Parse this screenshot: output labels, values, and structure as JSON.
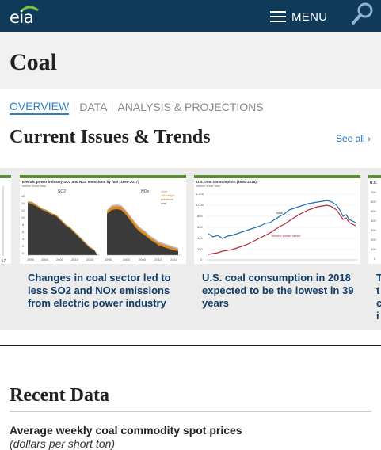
{
  "header": {
    "logo_text": "eia",
    "menu_label": "MENU",
    "search_icon": "magnifier-icon",
    "background_color": "#0f3a5a"
  },
  "page": {
    "title": "Coal"
  },
  "subnav": {
    "tabs": [
      {
        "label": "OVERVIEW",
        "active": true
      },
      {
        "label": "DATA",
        "active": false
      },
      {
        "label": "ANALYSIS & PROJECTIONS",
        "active": false
      }
    ]
  },
  "trends": {
    "title": "Current Issues & Trends",
    "see_all_label": "See all ›",
    "cards": [
      {
        "chart_title": "Electric power industry SO2 and NOx emissions by fuel (1995-2017)",
        "chart_units": "million short tons",
        "panel_left": "SO2",
        "panel_right": "NOx",
        "legend": [
          "other",
          "natural gas",
          "petroleum",
          "coal"
        ],
        "x_ticks": [
          "1995",
          "2000",
          "2005",
          "2010",
          "2015"
        ],
        "y_ticks": [
          "16",
          "14",
          "12",
          "10",
          "8",
          "6",
          "4",
          "2",
          "0"
        ],
        "caption": "Changes in coal sector led to less SO2 and NOx emissions from electric power industry"
      },
      {
        "chart_title": "U.S. coal consumption (1950-2018)",
        "chart_units": "million short tons",
        "series_labels": [
          "total",
          "electric power sector"
        ],
        "y_ticks": [
          "1,200",
          "1,000",
          "800",
          "600",
          "400",
          "200",
          "0"
        ],
        "caption": "U.S. coal consumption in 2018 expected to be the lowest in 39 years"
      }
    ],
    "partial_left": {
      "thumb_text": "-17"
    },
    "partial_right": {
      "thumb_text": "U.S.",
      "y_ticks": [
        "700",
        "600",
        "500",
        "400",
        "300",
        "200",
        "100",
        "0"
      ],
      "caption_letters": [
        "T",
        "t",
        "c",
        "i"
      ]
    }
  },
  "recent": {
    "title": "Recent Data",
    "heading": "Average weekly coal commodity spot prices",
    "subheading": "(dollars per short ton)"
  },
  "colors": {
    "accent": "#2a82c8",
    "card_border": "#5b8f32",
    "caption": "#123b66"
  }
}
